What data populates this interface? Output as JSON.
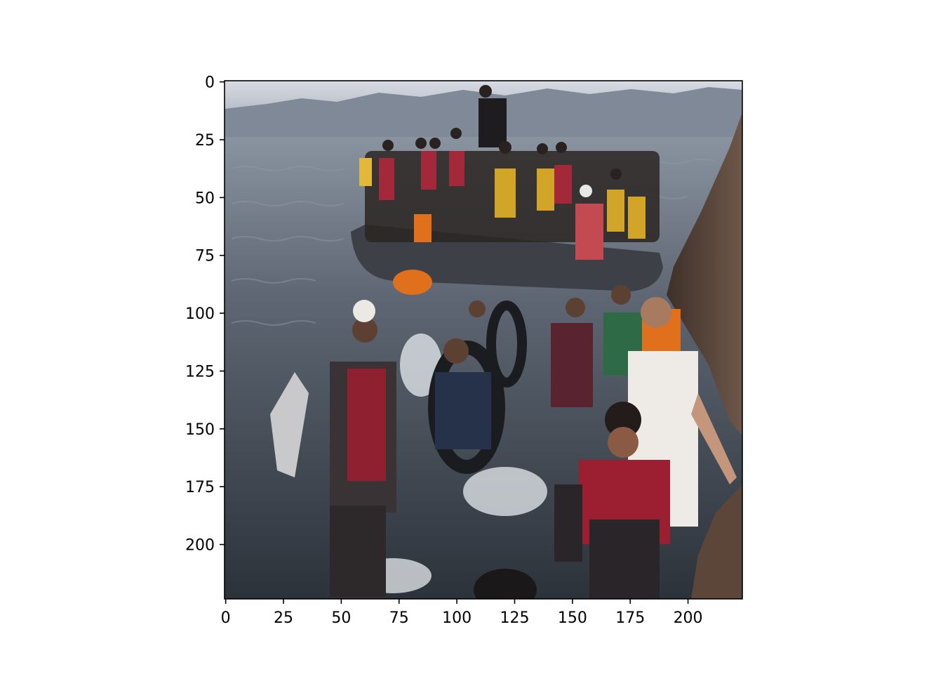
{
  "image_axes": {
    "x_ticks": [
      "0",
      "25",
      "50",
      "75",
      "100",
      "125",
      "150",
      "175",
      "200"
    ],
    "y_ticks": [
      "0",
      "25",
      "50",
      "75",
      "100",
      "125",
      "150",
      "175",
      "200"
    ],
    "x_tick_values": [
      0,
      25,
      50,
      75,
      100,
      125,
      150,
      175,
      200
    ],
    "y_tick_values": [
      0,
      25,
      50,
      75,
      100,
      125,
      150,
      175,
      200
    ],
    "xlim": [
      -0.5,
      223.5
    ],
    "ylim": [
      223.5,
      -0.5
    ],
    "image_size": [
      224,
      224
    ]
  },
  "colors": {
    "sky": "#c9cdd6",
    "hills": "#7d8796",
    "sea": "#4f5865",
    "sea_dark": "#2f353e",
    "rock": "#5a463c",
    "boat": "#3c3f44",
    "life_vest_red": "#a3283a",
    "life_vest_orange": "#e0701c",
    "life_vest_yellow": "#d2a528",
    "white_shirt": "#eeeae6"
  }
}
